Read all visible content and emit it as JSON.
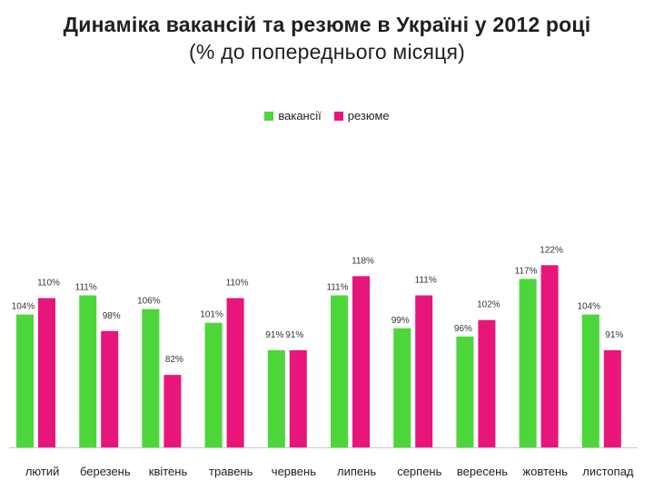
{
  "chart_data": {
    "type": "bar",
    "title": "Динаміка вакансій та резюме в Україні у 2012 році",
    "subtitle": "(% до попереднього місяця)",
    "xlabel": "",
    "ylabel": "",
    "ylim": [
      0,
      135
    ],
    "grid": false,
    "legend_position": "top-center",
    "categories": [
      "лютий",
      "березень",
      "квітень",
      "травень",
      "червень",
      "липень",
      "серпень",
      "вересень",
      "жовтень",
      "листопад"
    ],
    "series": [
      {
        "name": "вакансії",
        "color": "#4cd63a",
        "values": [
          104,
          111,
          106,
          101,
          91,
          111,
          99,
          96,
          117,
          104
        ],
        "labels": [
          "104%",
          "111%",
          "106%",
          "101%",
          "91%",
          "111%",
          "99%",
          "96%",
          "117%",
          "104%"
        ]
      },
      {
        "name": "резюме",
        "color": "#e8157a",
        "values": [
          110,
          98,
          82,
          110,
          91,
          118,
          111,
          102,
          122,
          91
        ],
        "labels": [
          "110%",
          "98%",
          "82%",
          "110%",
          "91%",
          "118%",
          "111%",
          "102%",
          "122%",
          "91%"
        ]
      }
    ]
  }
}
